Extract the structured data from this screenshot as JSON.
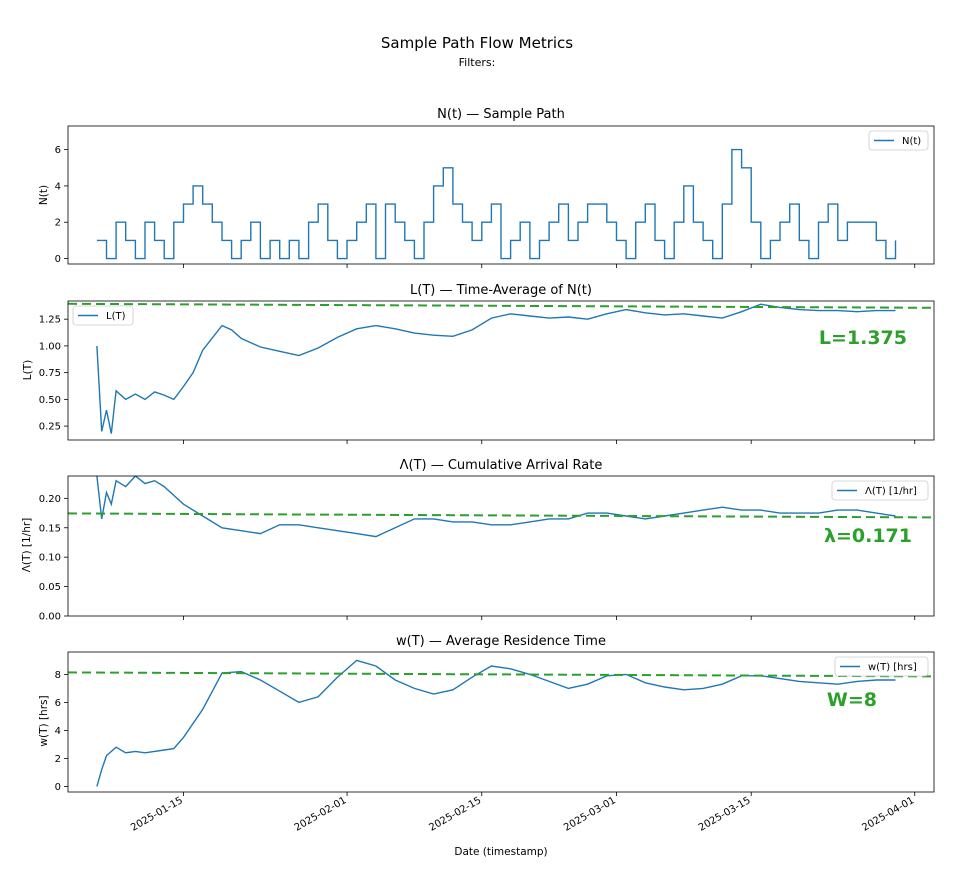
{
  "figure": {
    "title": "Sample Path Flow Metrics",
    "subtitle": "Filters:",
    "xlabel": "Date (timestamp)",
    "x_tick_labels": [
      "2025-01-15",
      "2025-02-01",
      "2025-02-15",
      "2025-03-01",
      "2025-03-15",
      "2025-04-01"
    ]
  },
  "colors": {
    "series": "#1f77b4",
    "reference": "#2ca02c"
  },
  "chart_data": [
    {
      "type": "line",
      "title": "N(t) — Sample Path",
      "ylabel": "N(t)",
      "legend": "N(t)",
      "legend_position": "top-right",
      "step": true,
      "xlim": [
        "2025-01-03",
        "2025-04-03"
      ],
      "ylim": [
        -0.3,
        7.3
      ],
      "yticks": [
        0,
        2,
        4,
        6
      ],
      "x": [
        "2025-01-06",
        "2025-01-07",
        "2025-01-08",
        "2025-01-09",
        "2025-01-10",
        "2025-01-11",
        "2025-01-12",
        "2025-01-13",
        "2025-01-14",
        "2025-01-15",
        "2025-01-16",
        "2025-01-17",
        "2025-01-18",
        "2025-01-19",
        "2025-01-20",
        "2025-01-21",
        "2025-01-22",
        "2025-01-23",
        "2025-01-24",
        "2025-01-25",
        "2025-01-26",
        "2025-01-27",
        "2025-01-28",
        "2025-01-29",
        "2025-01-30",
        "2025-01-31",
        "2025-02-01",
        "2025-02-02",
        "2025-02-03",
        "2025-02-04",
        "2025-02-05",
        "2025-02-06",
        "2025-02-07",
        "2025-02-08",
        "2025-02-09",
        "2025-02-10",
        "2025-02-11",
        "2025-02-12",
        "2025-02-13",
        "2025-02-14",
        "2025-02-15",
        "2025-02-16",
        "2025-02-17",
        "2025-02-18",
        "2025-02-19",
        "2025-02-20",
        "2025-02-21",
        "2025-02-22",
        "2025-02-23",
        "2025-02-24",
        "2025-02-25",
        "2025-02-26",
        "2025-02-27",
        "2025-02-28",
        "2025-03-01",
        "2025-03-02",
        "2025-03-03",
        "2025-03-04",
        "2025-03-05",
        "2025-03-06",
        "2025-03-07",
        "2025-03-08",
        "2025-03-09",
        "2025-03-10",
        "2025-03-11",
        "2025-03-12",
        "2025-03-13",
        "2025-03-14",
        "2025-03-15",
        "2025-03-16",
        "2025-03-17",
        "2025-03-18",
        "2025-03-19",
        "2025-03-20",
        "2025-03-21",
        "2025-03-22",
        "2025-03-23",
        "2025-03-24",
        "2025-03-25",
        "2025-03-26",
        "2025-03-27",
        "2025-03-28",
        "2025-03-29",
        "2025-03-30"
      ],
      "y": [
        1,
        0,
        2,
        1,
        0,
        2,
        1,
        0,
        2,
        3,
        4,
        3,
        2,
        1,
        0,
        1,
        2,
        0,
        1,
        0,
        1,
        0,
        2,
        3,
        1,
        0,
        1,
        2,
        3,
        0,
        3,
        2,
        1,
        0,
        2,
        4,
        5,
        3,
        2,
        1,
        2,
        3,
        0,
        1,
        2,
        0,
        1,
        2,
        3,
        1,
        2,
        3,
        3,
        2,
        1,
        0,
        2,
        3,
        1,
        0,
        2,
        4,
        2,
        1,
        0,
        3,
        6,
        5,
        2,
        0,
        1,
        2,
        3,
        1,
        0,
        2,
        3,
        1,
        2,
        2,
        2,
        1,
        0,
        1
      ]
    },
    {
      "type": "line",
      "title": "L(T) — Time-Average of N(t)",
      "ylabel": "L(T)",
      "legend": "L(T)",
      "legend_position": "top-left",
      "xlim": [
        "2025-01-03",
        "2025-04-03"
      ],
      "ylim": [
        0.12,
        1.42
      ],
      "yticks": [
        0.25,
        0.5,
        0.75,
        1.0,
        1.25
      ],
      "ytick_labels": [
        "0.25",
        "0.50",
        "0.75",
        "1.00",
        "1.25"
      ],
      "x": [
        "2025-01-06",
        "2025-01-06T12:00",
        "2025-01-07",
        "2025-01-07T12:00",
        "2025-01-08",
        "2025-01-09",
        "2025-01-10",
        "2025-01-11",
        "2025-01-12",
        "2025-01-13",
        "2025-01-14",
        "2025-01-15",
        "2025-01-16",
        "2025-01-17",
        "2025-01-19",
        "2025-01-20",
        "2025-01-21",
        "2025-01-23",
        "2025-01-25",
        "2025-01-27",
        "2025-01-29",
        "2025-01-31",
        "2025-02-02",
        "2025-02-04",
        "2025-02-06",
        "2025-02-08",
        "2025-02-10",
        "2025-02-12",
        "2025-02-14",
        "2025-02-16",
        "2025-02-18",
        "2025-02-20",
        "2025-02-22",
        "2025-02-24",
        "2025-02-26",
        "2025-02-28",
        "2025-03-02",
        "2025-03-04",
        "2025-03-06",
        "2025-03-08",
        "2025-03-10",
        "2025-03-12",
        "2025-03-14",
        "2025-03-16",
        "2025-03-18",
        "2025-03-20",
        "2025-03-22",
        "2025-03-24",
        "2025-03-26",
        "2025-03-28",
        "2025-03-30"
      ],
      "y": [
        1.0,
        0.2,
        0.4,
        0.18,
        0.58,
        0.5,
        0.55,
        0.5,
        0.57,
        0.54,
        0.5,
        0.62,
        0.75,
        0.96,
        1.19,
        1.15,
        1.07,
        0.99,
        0.95,
        0.91,
        0.98,
        1.08,
        1.16,
        1.19,
        1.16,
        1.12,
        1.1,
        1.09,
        1.15,
        1.26,
        1.3,
        1.28,
        1.26,
        1.27,
        1.25,
        1.3,
        1.34,
        1.31,
        1.29,
        1.3,
        1.28,
        1.26,
        1.32,
        1.39,
        1.36,
        1.34,
        1.33,
        1.33,
        1.32,
        1.33,
        1.33
      ],
      "reference": {
        "value": 1.375,
        "label": "L=1.375"
      }
    },
    {
      "type": "line",
      "title": "Λ(T) — Cumulative Arrival Rate",
      "ylabel": "Λ(T) [1/hr]",
      "legend": "Λ(T) [1/hr]",
      "legend_position": "top-right",
      "xlim": [
        "2025-01-03",
        "2025-04-03"
      ],
      "ylim": [
        0.0,
        0.238
      ],
      "yticks": [
        0.0,
        0.05,
        0.1,
        0.15,
        0.2
      ],
      "ytick_labels": [
        "0.00",
        "0.05",
        "0.10",
        "0.15",
        "0.20"
      ],
      "x": [
        "2025-01-06",
        "2025-01-06T12:00",
        "2025-01-07",
        "2025-01-07T12:00",
        "2025-01-08",
        "2025-01-09",
        "2025-01-10",
        "2025-01-11",
        "2025-01-12",
        "2025-01-13",
        "2025-01-14",
        "2025-01-15",
        "2025-01-17",
        "2025-01-19",
        "2025-01-21",
        "2025-01-23",
        "2025-01-25",
        "2025-01-27",
        "2025-01-29",
        "2025-01-31",
        "2025-02-02",
        "2025-02-04",
        "2025-02-06",
        "2025-02-08",
        "2025-02-10",
        "2025-02-12",
        "2025-02-14",
        "2025-02-16",
        "2025-02-18",
        "2025-02-20",
        "2025-02-22",
        "2025-02-24",
        "2025-02-26",
        "2025-02-28",
        "2025-03-02",
        "2025-03-04",
        "2025-03-06",
        "2025-03-08",
        "2025-03-10",
        "2025-03-12",
        "2025-03-14",
        "2025-03-16",
        "2025-03-18",
        "2025-03-20",
        "2025-03-22",
        "2025-03-24",
        "2025-03-26",
        "2025-03-28",
        "2025-03-30"
      ],
      "y": [
        0.238,
        0.165,
        0.21,
        0.19,
        0.23,
        0.22,
        0.238,
        0.225,
        0.23,
        0.22,
        0.205,
        0.19,
        0.17,
        0.15,
        0.145,
        0.14,
        0.155,
        0.155,
        0.15,
        0.145,
        0.14,
        0.135,
        0.15,
        0.165,
        0.165,
        0.16,
        0.16,
        0.155,
        0.155,
        0.16,
        0.165,
        0.165,
        0.175,
        0.175,
        0.17,
        0.165,
        0.17,
        0.175,
        0.18,
        0.185,
        0.18,
        0.18,
        0.175,
        0.175,
        0.175,
        0.18,
        0.18,
        0.175,
        0.17
      ],
      "reference": {
        "value": 0.171,
        "label": "λ=0.171"
      }
    },
    {
      "type": "line",
      "title": "w(T) — Average Residence Time",
      "ylabel": "w(T) [hrs]",
      "legend": "w(T) [hrs]",
      "legend_position": "top-right",
      "xlim": [
        "2025-01-03",
        "2025-04-03"
      ],
      "ylim": [
        -0.4,
        9.6
      ],
      "yticks": [
        0,
        2,
        4,
        6,
        8
      ],
      "x": [
        "2025-01-06",
        "2025-01-06T12:00",
        "2025-01-07",
        "2025-01-08",
        "2025-01-09",
        "2025-01-10",
        "2025-01-11",
        "2025-01-12",
        "2025-01-13",
        "2025-01-14",
        "2025-01-15",
        "2025-01-17",
        "2025-01-19",
        "2025-01-21",
        "2025-01-23",
        "2025-01-25",
        "2025-01-27",
        "2025-01-29",
        "2025-01-31",
        "2025-02-02",
        "2025-02-04",
        "2025-02-06",
        "2025-02-08",
        "2025-02-10",
        "2025-02-12",
        "2025-02-14",
        "2025-02-16",
        "2025-02-18",
        "2025-02-20",
        "2025-02-22",
        "2025-02-24",
        "2025-02-26",
        "2025-02-28",
        "2025-03-02",
        "2025-03-04",
        "2025-03-06",
        "2025-03-08",
        "2025-03-10",
        "2025-03-12",
        "2025-03-14",
        "2025-03-16",
        "2025-03-18",
        "2025-03-20",
        "2025-03-22",
        "2025-03-24",
        "2025-03-26",
        "2025-03-28",
        "2025-03-30"
      ],
      "y": [
        0.0,
        1.2,
        2.2,
        2.8,
        2.4,
        2.5,
        2.4,
        2.5,
        2.6,
        2.7,
        3.5,
        5.5,
        8.1,
        8.2,
        7.6,
        6.8,
        6.0,
        6.4,
        7.8,
        9.0,
        8.6,
        7.6,
        7.0,
        6.6,
        6.9,
        7.8,
        8.6,
        8.4,
        8.0,
        7.5,
        7.0,
        7.3,
        7.9,
        8.0,
        7.4,
        7.1,
        6.9,
        7.0,
        7.3,
        7.9,
        7.9,
        7.7,
        7.5,
        7.4,
        7.3,
        7.5,
        7.6,
        7.6
      ],
      "reference": {
        "value": 8,
        "label": "W=8"
      }
    }
  ]
}
